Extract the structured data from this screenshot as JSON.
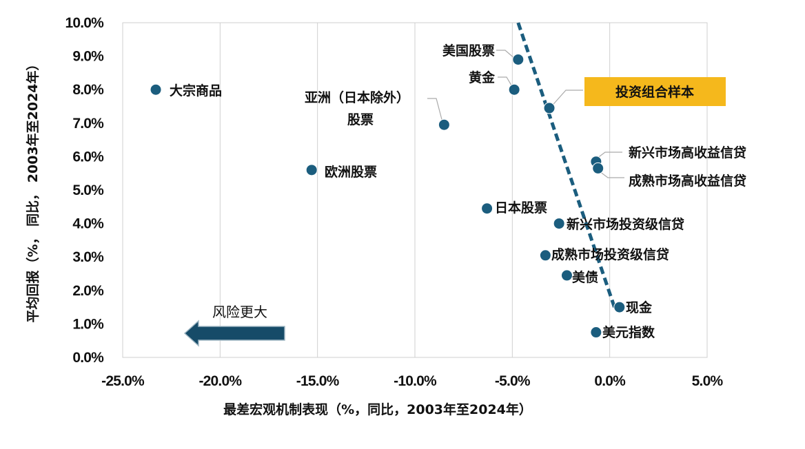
{
  "chart_data": {
    "type": "scatter",
    "title": "",
    "xlabel": "最差宏观机制表现（%，同比，2003年至2024年）",
    "ylabel": "平均回报（%， 同比， 2003年至2024年）",
    "xlim": [
      -25.0,
      5.0
    ],
    "ylim": [
      0.0,
      10.0
    ],
    "x_ticks": [
      -25,
      -20,
      -15,
      -10,
      -5,
      0,
      5
    ],
    "x_tick_labels": [
      "-25.0%",
      "-20.0%",
      "-15.0%",
      "-10.0%",
      "-5.0%",
      "0.0%",
      "5.0%"
    ],
    "y_ticks": [
      0,
      1,
      2,
      3,
      4,
      5,
      6,
      7,
      8,
      9,
      10
    ],
    "y_tick_labels": [
      "0.0%",
      "1.0%",
      "2.0%",
      "3.0%",
      "4.0%",
      "5.0%",
      "6.0%",
      "7.0%",
      "8.0%",
      "9.0%",
      "10.0%"
    ],
    "grid": "vertical",
    "points": [
      {
        "label": "大宗商品",
        "x": -23.3,
        "y": 8.0
      },
      {
        "label": "欧洲股票",
        "x": -15.3,
        "y": 5.6
      },
      {
        "label": "亚洲（日本除外）股票",
        "x": -8.5,
        "y": 6.95
      },
      {
        "label": "美国股票",
        "x": -4.7,
        "y": 8.9
      },
      {
        "label": "黄金",
        "x": -4.9,
        "y": 8.0
      },
      {
        "label": "投资组合样本",
        "x": -3.1,
        "y": 7.45
      },
      {
        "label": "新兴市场高收益信贷",
        "x": -0.7,
        "y": 5.85
      },
      {
        "label": "成熟市场高收益信贷",
        "x": -0.6,
        "y": 5.65
      },
      {
        "label": "日本股票",
        "x": -6.3,
        "y": 4.45
      },
      {
        "label": "新兴市场投资级信贷",
        "x": -2.6,
        "y": 4.0
      },
      {
        "label": "成熟市场投资级信贷",
        "x": -3.3,
        "y": 3.05
      },
      {
        "label": "美债",
        "x": -2.2,
        "y": 2.45
      },
      {
        "label": "现金",
        "x": 0.5,
        "y": 1.5
      },
      {
        "label": "美元指数",
        "x": -0.7,
        "y": 0.75
      }
    ],
    "trendline": {
      "style": "dashed",
      "from": {
        "x": -4.7,
        "y": 10.0
      },
      "to": {
        "x": 0.3,
        "y": 1.4
      }
    },
    "highlight_label": "投资组合样本",
    "annotation": {
      "text": "风险更大",
      "arrow": "left"
    },
    "colors": {
      "point": "#1b5d7e",
      "trend": "#1b5d7e",
      "arrow_fill": "#164b68",
      "highlight": "#f5b81c",
      "grid": "#cfcfcf"
    }
  }
}
